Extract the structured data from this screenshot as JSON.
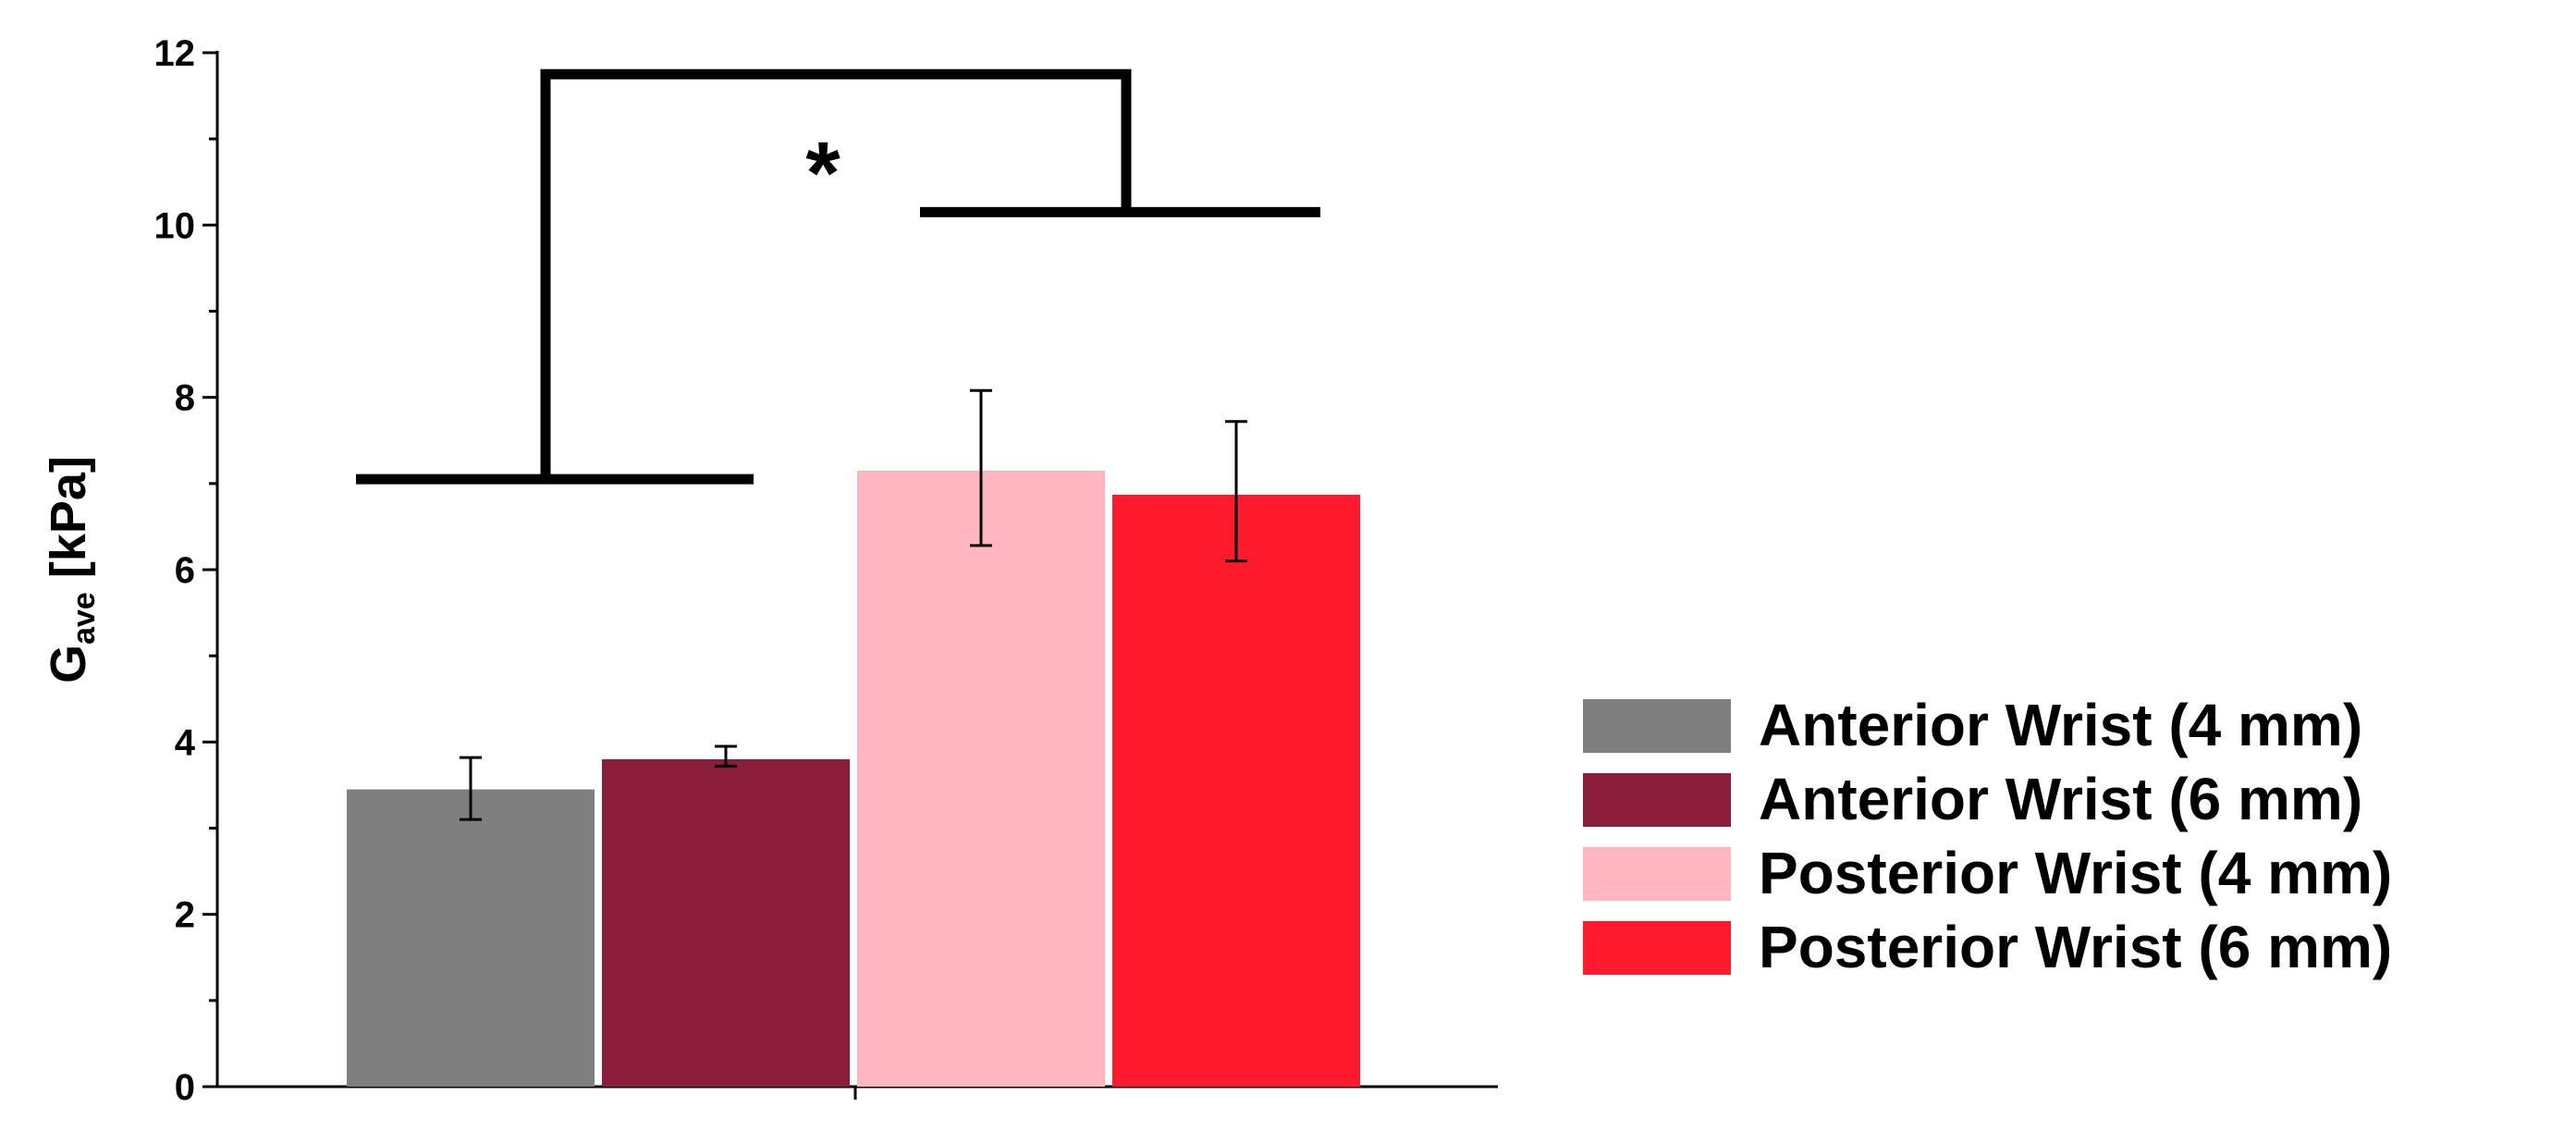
{
  "chart_data": {
    "type": "bar",
    "ylabel": {
      "main": "G",
      "subscript": "ave",
      "units": " [kPa]"
    },
    "xlabel": "",
    "ylim": [
      0,
      12
    ],
    "yticks": [
      0,
      2,
      4,
      6,
      8,
      10,
      12
    ],
    "grid": false,
    "legend_position": "right",
    "series": [
      {
        "name": "Anterior Wrist (4 mm)",
        "value": 3.45,
        "error_low": 3.1,
        "error_high": 3.82,
        "color": "#7f7f7f"
      },
      {
        "name": "Anterior Wrist (6 mm)",
        "value": 3.8,
        "error_low": 3.72,
        "error_high": 3.95,
        "color": "#8b1e3a"
      },
      {
        "name": "Posterior Wrist (4 mm)",
        "value": 7.15,
        "error_low": 6.28,
        "error_high": 8.08,
        "color": "#ffb6c1"
      },
      {
        "name": "Posterior Wrist (6 mm)",
        "value": 6.87,
        "error_low": 6.1,
        "error_high": 7.72,
        "color": "#ff1a2e"
      }
    ],
    "significance": {
      "label": "*",
      "left_group": {
        "series": [
          0,
          1
        ],
        "y": 7.05
      },
      "right_group": {
        "series": [
          2,
          3
        ],
        "y": 10.15
      },
      "bracket_top_y": 11.75
    }
  }
}
